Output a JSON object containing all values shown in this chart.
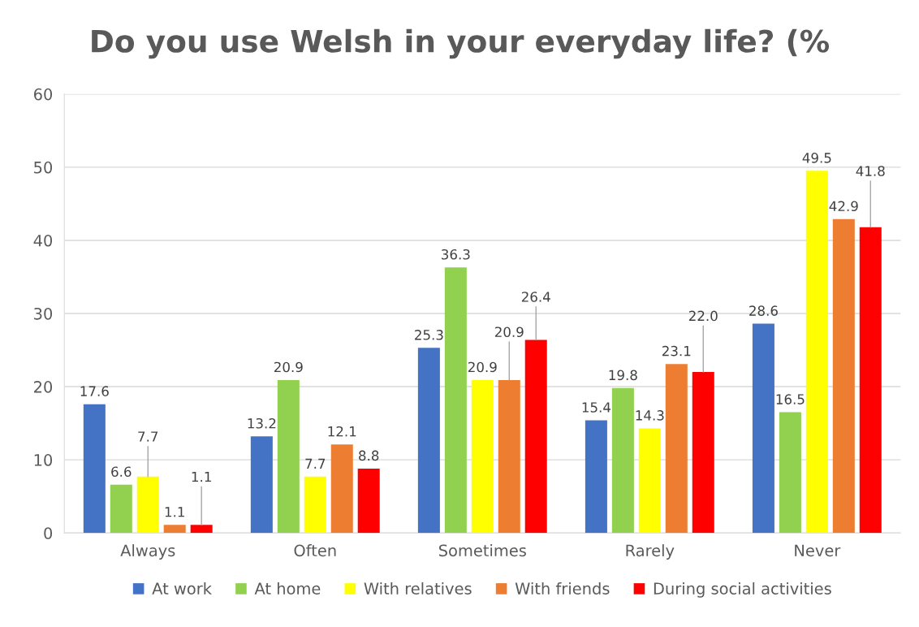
{
  "chart_data": {
    "type": "bar",
    "title": "Do you use Welsh in your everyday life? (%",
    "categories": [
      "Always",
      "Often",
      "Sometimes",
      "Rarely",
      "Never"
    ],
    "series": [
      {
        "name": "At work",
        "color": "#4472c4",
        "values": [
          17.6,
          13.2,
          25.3,
          15.4,
          28.6
        ],
        "value_labels": [
          "17.6",
          "13.2",
          "25.3",
          "15.4",
          "28.6"
        ]
      },
      {
        "name": "At home",
        "color": "#92d050",
        "values": [
          6.6,
          20.9,
          36.3,
          19.8,
          16.5
        ],
        "value_labels": [
          "6.6",
          "20.9",
          "36.3",
          "19.8",
          "16.5"
        ]
      },
      {
        "name": "With relatives",
        "color": "#ffff00",
        "values": [
          7.7,
          7.7,
          20.9,
          14.3,
          49.5
        ],
        "value_labels": [
          "7.7",
          "7.7",
          "20.9",
          "14.3",
          "49.5"
        ]
      },
      {
        "name": "With friends",
        "color": "#ed7d31",
        "values": [
          1.1,
          12.1,
          20.9,
          23.1,
          42.9
        ],
        "value_labels": [
          "1.1",
          "12.1",
          "20.9",
          "23.1",
          "42.9"
        ]
      },
      {
        "name": "During social activities",
        "color": "#ff0000",
        "values": [
          1.1,
          8.8,
          26.4,
          22.0,
          41.8
        ],
        "value_labels": [
          "1.1",
          "8.8",
          "26.4",
          "22.0",
          "41.8"
        ]
      }
    ],
    "ylim": [
      0,
      60
    ],
    "yticks": [
      0,
      10,
      20,
      30,
      40,
      50,
      60
    ],
    "grid": "y",
    "legend": "bottom"
  }
}
